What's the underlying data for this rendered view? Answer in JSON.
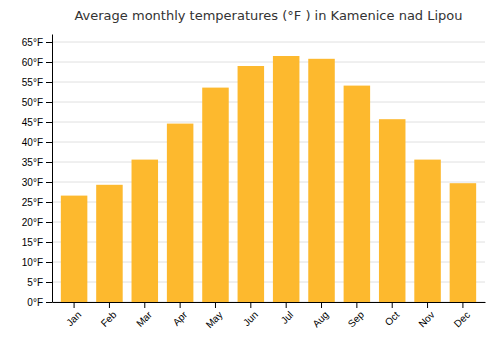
{
  "chart_data": {
    "type": "bar",
    "title": "Average monthly temperatures (°F ) in Kamenice nad Lipou",
    "categories": [
      "Jan",
      "Feb",
      "Mar",
      "Apr",
      "May",
      "Jun",
      "Jul",
      "Aug",
      "Sep",
      "Oct",
      "Nov",
      "Dec"
    ],
    "values": [
      26.6,
      29.3,
      35.6,
      44.6,
      53.6,
      59.0,
      61.5,
      60.8,
      54.1,
      45.7,
      35.6,
      29.7
    ],
    "color": "#FDB92E",
    "ylim": [
      0,
      67
    ],
    "yticks": [
      {
        "value": 0,
        "label": "0°F"
      },
      {
        "value": 5,
        "label": "5°F"
      },
      {
        "value": 10,
        "label": "10°F"
      },
      {
        "value": 15,
        "label": "15°F"
      },
      {
        "value": 20,
        "label": "20°F"
      },
      {
        "value": 25,
        "label": "25°F"
      },
      {
        "value": 30,
        "label": "30°F"
      },
      {
        "value": 35,
        "label": "35°F"
      },
      {
        "value": 40,
        "label": "40°F"
      },
      {
        "value": 45,
        "label": "45°F"
      },
      {
        "value": 50,
        "label": "50°F"
      },
      {
        "value": 55,
        "label": "55°F"
      },
      {
        "value": 60,
        "label": "60°F"
      },
      {
        "value": 65,
        "label": "65°F"
      }
    ],
    "grid": true
  }
}
